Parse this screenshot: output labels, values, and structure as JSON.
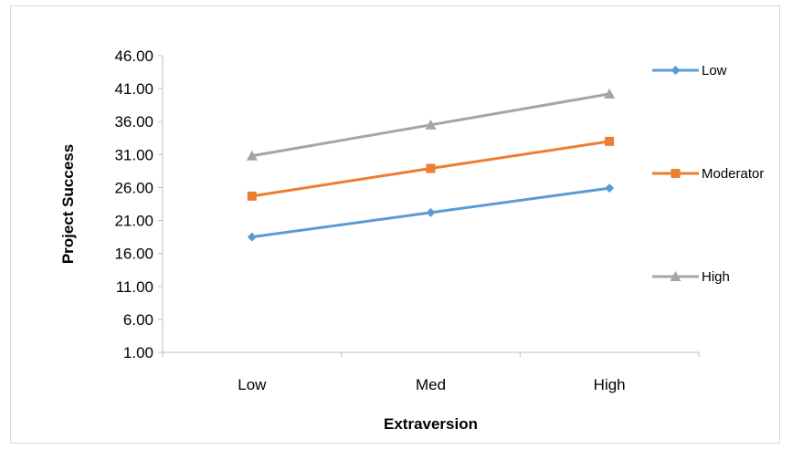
{
  "chart_data": {
    "type": "line",
    "categories": [
      "Low",
      "Med",
      "High"
    ],
    "xlabel": "Extraversion",
    "ylabel": "Project Success",
    "ylim": [
      1,
      46
    ],
    "yticks": [
      "1.00",
      "6.00",
      "11.00",
      "16.00",
      "21.00",
      "26.00",
      "31.00",
      "36.00",
      "41.00",
      "46.00"
    ],
    "grid": false,
    "legend_position": "right",
    "series": [
      {
        "name": "Low",
        "values": [
          18.5,
          22.2,
          25.9
        ],
        "color": "#5b9bd5",
        "marker": "diamond"
      },
      {
        "name": "Moderator",
        "values": [
          24.7,
          28.9,
          33.0
        ],
        "color": "#ed7d31",
        "marker": "square"
      },
      {
        "name": "High",
        "values": [
          30.8,
          35.5,
          40.2
        ],
        "color": "#a5a5a5",
        "marker": "triangle"
      }
    ]
  }
}
